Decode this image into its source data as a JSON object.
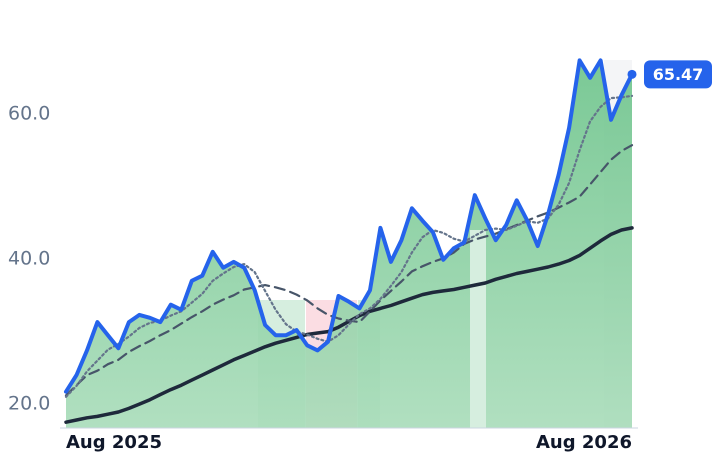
{
  "chart_data": {
    "type": "line",
    "x": [
      "Aug 2025",
      null,
      null,
      null,
      null,
      null,
      null,
      null,
      null,
      null,
      null,
      null,
      null,
      null,
      null,
      null,
      null,
      null,
      null,
      null,
      null,
      null,
      null,
      null,
      null,
      null,
      null,
      null,
      null,
      null,
      null,
      null,
      null,
      null,
      null,
      null,
      null,
      null,
      null,
      null,
      null,
      null,
      null,
      null,
      null,
      null,
      null,
      null,
      null,
      null,
      null,
      null,
      null,
      null,
      "Aug 2026"
    ],
    "series": [
      {
        "color": "#1e293b",
        "style": "solid",
        "values": [
          17.5,
          17.8,
          18.1,
          18.3,
          18.6,
          18.9,
          19.4,
          20,
          20.6,
          21.3,
          22,
          22.6,
          23.3,
          24,
          24.7,
          25.4,
          26.1,
          26.7,
          27.3,
          27.9,
          28.4,
          28.8,
          29.2,
          29.6,
          29.8,
          30,
          30.6,
          31.4,
          32.2,
          32.8,
          33.2,
          33.6,
          34.1,
          34.6,
          35.1,
          35.4,
          35.6,
          35.8,
          36.1,
          36.4,
          36.7,
          37.2,
          37.6,
          38,
          38.3,
          38.6,
          38.9,
          39.3,
          39.8,
          40.5,
          41.5,
          42.5,
          43.4,
          44,
          44.3
        ]
      },
      {
        "color": "#475569",
        "style": "dashed",
        "values": [
          21.2,
          22.6,
          24,
          24.6,
          25.5,
          26.1,
          27.2,
          28,
          28.7,
          29.5,
          30.2,
          31.1,
          32,
          32.8,
          33.7,
          34.4,
          35,
          35.8,
          36.1,
          36.4,
          36.1,
          35.7,
          35.1,
          34.3,
          33.2,
          32.3,
          31.8,
          31.5,
          31.3,
          32.8,
          34.3,
          35.6,
          36.9,
          38.3,
          39,
          39.6,
          40.1,
          40.9,
          42.1,
          42.7,
          43.1,
          43.5,
          44.1,
          44.7,
          45.3,
          45.9,
          46.4,
          47.1,
          47.8,
          48.6,
          50.3,
          52,
          53.7,
          54.9,
          55.7
        ]
      },
      {
        "color": "#64748b",
        "style": "dotted",
        "values": [
          21,
          22.5,
          24.5,
          26,
          27.5,
          28.3,
          29.3,
          30.5,
          31.2,
          31.5,
          32.2,
          32.8,
          34,
          35.2,
          37,
          38,
          38.9,
          39.3,
          38.2,
          35.6,
          33,
          31,
          30,
          29.6,
          29,
          28.6,
          29.5,
          31,
          32.4,
          33.2,
          34.5,
          36.3,
          38.2,
          40.9,
          43,
          44,
          43.6,
          42.8,
          42.4,
          43.2,
          44,
          44.2,
          44,
          44.6,
          45.2,
          45,
          45.6,
          47.5,
          50.5,
          55,
          59,
          61,
          62.2,
          62.3,
          62.5
        ]
      },
      {
        "color": "#2563eb",
        "style": "solid",
        "area": "#8fd1a5",
        "values": [
          21.7,
          24,
          27.4,
          31.3,
          29.5,
          27.7,
          31.3,
          32.3,
          31.9,
          31.3,
          33.7,
          33,
          37,
          37.7,
          41,
          38.8,
          39.6,
          38.8,
          35.7,
          30.9,
          29.5,
          29.5,
          30.2,
          28.1,
          27.4,
          28.6,
          34.9,
          34.1,
          33.2,
          35.7,
          44.3,
          39.6,
          42.6,
          47,
          45.3,
          43.7,
          39.9,
          41.5,
          42.3,
          48.8,
          45.6,
          42.6,
          44.7,
          48.1,
          45.3,
          41.8,
          46.2,
          51.6,
          58.1,
          67.4,
          65,
          67.4,
          59.2,
          62.6,
          65.47
        ],
        "value_labels": {
          "54": "65.47"
        }
      }
    ],
    "ylim": [
      16.7,
      69
    ],
    "yticks": [
      {
        "value": 20,
        "label": "20.0"
      },
      {
        "value": 40,
        "label": "40.0"
      },
      {
        "value": 60,
        "label": "60.0"
      }
    ]
  }
}
